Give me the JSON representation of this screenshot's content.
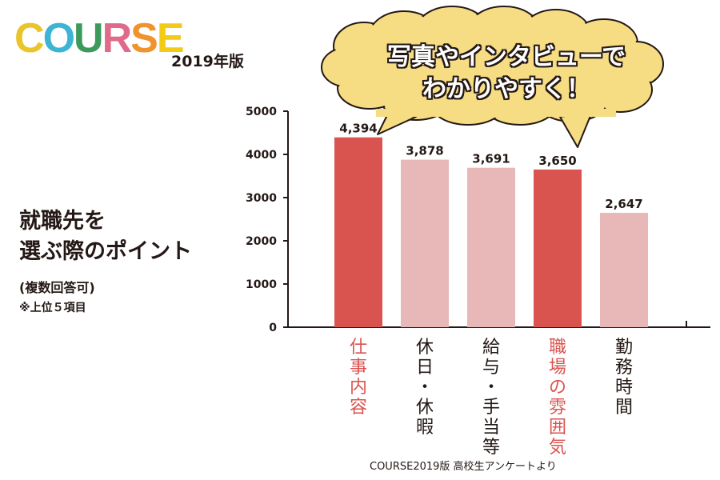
{
  "header": {
    "logo": "COURSE",
    "logo_colors": [
      "#e9c42b",
      "#3cb4d4",
      "#3c9a5c",
      "#e06a8a",
      "#f0932c",
      "#f3cb17"
    ],
    "edition": "2019年版"
  },
  "side": {
    "title_line1": "就職先を",
    "title_line2": "選ぶ際のポイント",
    "subtitle": "(複数回答可)",
    "note": "※上位５項目"
  },
  "bubble": {
    "line1": "写真やインタビューで",
    "line2": "わかりやすく！",
    "fill_color": "#f6dc83"
  },
  "source": "COURSE2019版 高校生アンケートより",
  "colors": {
    "highlight": "#d9534f",
    "normal": "#e8b7b7",
    "highlight_text": "#d9534f",
    "normal_text": "#231815"
  },
  "chart_data": {
    "type": "bar",
    "title": "",
    "xlabel": "",
    "ylabel": "",
    "ylim": [
      0,
      5000
    ],
    "yticks": [
      0,
      1000,
      2000,
      3000,
      4000,
      5000
    ],
    "ytick_labels": [
      "0",
      "1000",
      "2000",
      "3000",
      "4000",
      "5000"
    ],
    "categories": [
      "仕事内容",
      "休日・休暇",
      "給与・手当等",
      "職場の雰囲気",
      "勤務時間"
    ],
    "category_chars": [
      [
        "仕",
        "事",
        "内",
        "容"
      ],
      [
        "休",
        "日",
        "・",
        "休",
        "暇"
      ],
      [
        "給",
        "与",
        "・",
        "手",
        "当",
        "等"
      ],
      [
        "職",
        "場",
        "の",
        "雰",
        "囲",
        "気"
      ],
      [
        "勤",
        "務",
        "時",
        "間"
      ]
    ],
    "values": [
      4394,
      3878,
      3691,
      3650,
      2647
    ],
    "value_labels": [
      "4,394",
      "3,878",
      "3,691",
      "3,650",
      "2,647"
    ],
    "highlight": [
      true,
      false,
      false,
      true,
      false
    ],
    "grid": false
  }
}
